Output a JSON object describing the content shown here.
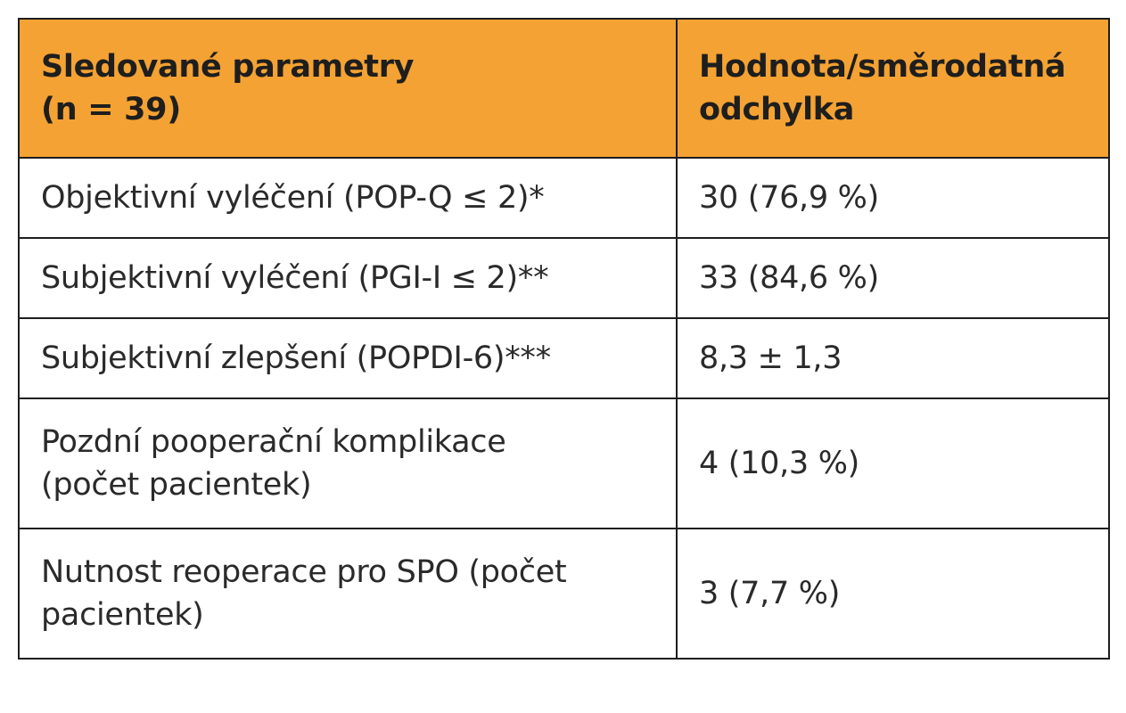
{
  "table": {
    "headers": [
      [
        "Sledované parametry",
        "(n = 39)"
      ],
      [
        "Hodnota/směrodatná",
        "odchylka"
      ]
    ],
    "rows": [
      {
        "parameter": [
          "Objektivní vyléčení (POP-Q ≤ 2)*"
        ],
        "value": "30 (76,9 %)"
      },
      {
        "parameter": [
          "Subjektivní vyléčení (PGI-I ≤ 2)**"
        ],
        "value": "33 (84,6 %)"
      },
      {
        "parameter": [
          "Subjektivní zlepšení (POPDI-6)***"
        ],
        "value": "8,3 ± 1,3"
      },
      {
        "parameter": [
          "Pozdní pooperační komplikace",
          "(počet pacientek)"
        ],
        "value": "4 (10,3 %)"
      },
      {
        "parameter": [
          "Nutnost reoperace pro SPO (počet",
          "pacientek)"
        ],
        "value": "3 (7,7 %)"
      }
    ],
    "colors": {
      "header_background": "#f4a233",
      "border": "#1e1e1e",
      "text": "#1e1e1e"
    }
  }
}
